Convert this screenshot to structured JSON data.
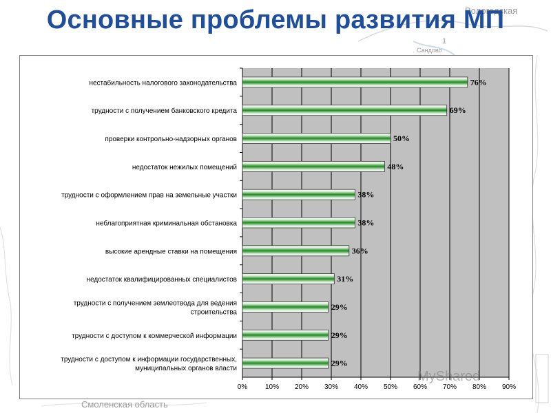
{
  "slide": {
    "title": "Основные проблемы развития МП"
  },
  "background_map": {
    "labels": [
      "Вологодская",
      "Сандово",
      "1",
      "Смоленская область",
      "Смоленская область"
    ]
  },
  "watermark": {
    "text": "MyShared"
  },
  "chart_data": {
    "type": "bar",
    "orientation": "horizontal",
    "title": "",
    "xlabel": "",
    "ylabel": "",
    "xlim": [
      0,
      90
    ],
    "xticks": [
      "0%",
      "10%",
      "20%",
      "30%",
      "40%",
      "50%",
      "60%",
      "70%",
      "80%",
      "90%"
    ],
    "grid": true,
    "plot_background": "#c0c0c0",
    "bar_gradient": [
      "#ffffff",
      "#1e8a1e",
      "#ffffff"
    ],
    "categories": [
      [
        "нестабильность налогового законодательства"
      ],
      [
        "трудности с получением банковского кредита"
      ],
      [
        "проверки контрольно-надзорных органов"
      ],
      [
        "недостаток нежилых помещений"
      ],
      [
        "трудности с оформлением прав на земельные участки"
      ],
      [
        "неблагоприятная криминальная обстановка"
      ],
      [
        "высокие арендные ставки на помещения"
      ],
      [
        "недостаток квалифицированных специалистов"
      ],
      [
        "трудности с получением землеотвода для ведения",
        "строительства"
      ],
      [
        "трудности с доступом к коммерческой информации"
      ],
      [
        "трудности с доступом к информации государственных,",
        "муниципальных органов власти"
      ]
    ],
    "values": [
      76,
      69,
      50,
      48,
      38,
      38,
      36,
      31,
      29,
      29,
      29
    ],
    "value_labels": [
      "76%",
      "69%",
      "50%",
      "48%",
      "38%",
      "38%",
      "36%",
      "31%",
      "29%",
      "29%",
      "29%"
    ]
  }
}
